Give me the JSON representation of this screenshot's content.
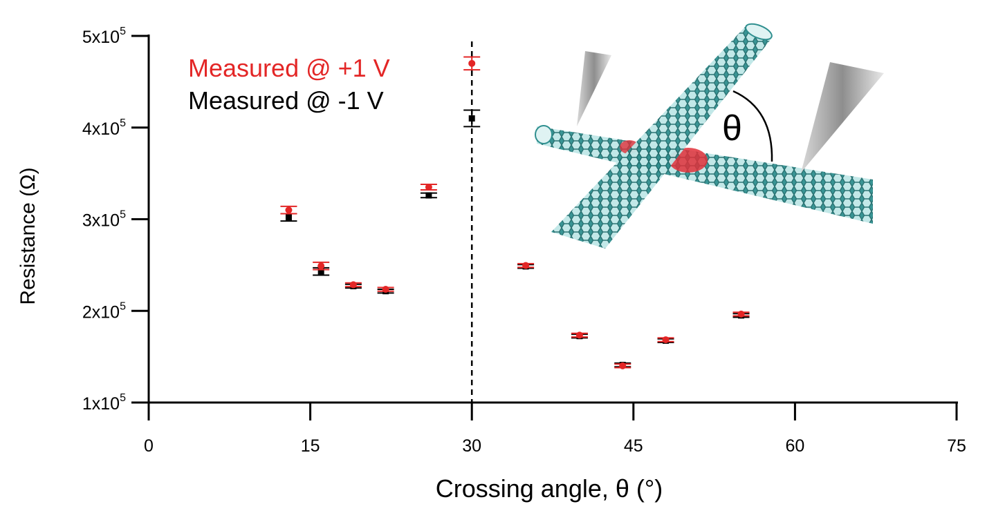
{
  "chart_data": {
    "type": "scatter",
    "xlabel": "Crossing angle, θ (°)",
    "ylabel": "Resistance (Ω)",
    "xlim": [
      0,
      75
    ],
    "ylim": [
      100000,
      500000
    ],
    "xticks": [
      {
        "value": 0,
        "label": "0"
      },
      {
        "value": 15,
        "label": "15"
      },
      {
        "value": 30,
        "label": "30"
      },
      {
        "value": 45,
        "label": "45"
      },
      {
        "value": 60,
        "label": "60"
      },
      {
        "value": 75,
        "label": "75"
      }
    ],
    "yticks": [
      {
        "value": 100000,
        "mantissa": "1x10",
        "exp": "5"
      },
      {
        "value": 200000,
        "mantissa": "2x10",
        "exp": "5"
      },
      {
        "value": 300000,
        "mantissa": "3x10",
        "exp": "5"
      },
      {
        "value": 400000,
        "mantissa": "4x10",
        "exp": "5"
      },
      {
        "value": 500000,
        "mantissa": "5x10",
        "exp": "5"
      }
    ],
    "grid": false,
    "legend_position": "top-left",
    "reference_line": {
      "x": 30,
      "style": "dashed"
    },
    "series": [
      {
        "name": "Measured @ +1 V",
        "color": "#e32626",
        "marker": "circle",
        "points": [
          {
            "x": 13,
            "y": 310000,
            "err": 4000
          },
          {
            "x": 16,
            "y": 249000,
            "err": 4000
          },
          {
            "x": 19,
            "y": 228500,
            "err": 2000
          },
          {
            "x": 22,
            "y": 223500,
            "err": 2000
          },
          {
            "x": 26,
            "y": 335000,
            "err": 3000
          },
          {
            "x": 30,
            "y": 470000,
            "err": 7000
          },
          {
            "x": 35,
            "y": 249500,
            "err": 2000
          },
          {
            "x": 40,
            "y": 173500,
            "err": 2000
          },
          {
            "x": 44,
            "y": 140000,
            "err": 2000
          },
          {
            "x": 48,
            "y": 168500,
            "err": 2000
          },
          {
            "x": 55,
            "y": 196500,
            "err": 2000
          }
        ]
      },
      {
        "name": "Measured @ -1 V",
        "color": "#000000",
        "marker": "square",
        "points": [
          {
            "x": 13,
            "y": 302000,
            "err": 4000
          },
          {
            "x": 16,
            "y": 243000,
            "err": 4000
          },
          {
            "x": 19,
            "y": 227000,
            "err": 2000
          },
          {
            "x": 22,
            "y": 221500,
            "err": 2000
          },
          {
            "x": 26,
            "y": 326000,
            "err": 2500
          },
          {
            "x": 30,
            "y": 410000,
            "err": 9000
          },
          {
            "x": 35,
            "y": 248500,
            "err": 2000
          },
          {
            "x": 40,
            "y": 172500,
            "err": 2000
          },
          {
            "x": 44,
            "y": 141000,
            "err": 2000
          },
          {
            "x": 48,
            "y": 167500,
            "err": 2000
          },
          {
            "x": 55,
            "y": 195000,
            "err": 2000
          }
        ]
      }
    ]
  },
  "inset": {
    "angle_label": "θ",
    "tube_color": "#4aa6a6",
    "contact_color": "#e0303a",
    "tip_color": "#9a9a9a"
  }
}
